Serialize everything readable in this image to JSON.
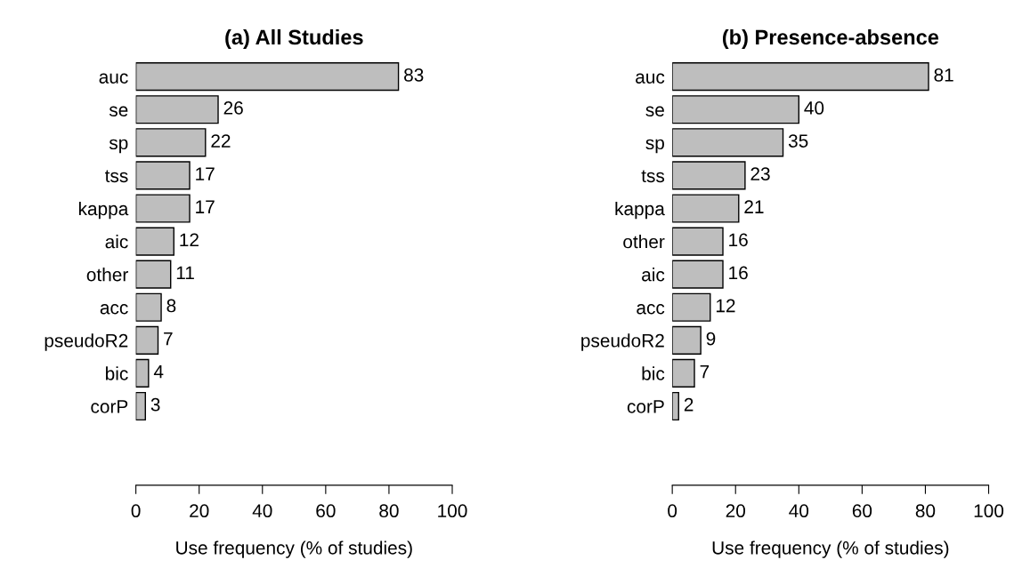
{
  "chart_data": [
    {
      "type": "bar",
      "orientation": "horizontal",
      "title": "(a) All Studies",
      "xlabel": "Use frequency (% of studies)",
      "categories": [
        "auc",
        "se",
        "sp",
        "tss",
        "kappa",
        "aic",
        "other",
        "acc",
        "pseudoR2",
        "bic",
        "corP"
      ],
      "values": [
        83,
        26,
        22,
        17,
        17,
        12,
        11,
        8,
        7,
        4,
        3
      ],
      "color": "#bebebe",
      "xlim": [
        0,
        100
      ],
      "xticks": [
        0,
        20,
        40,
        60,
        80,
        100
      ],
      "data_labels": true,
      "grid": false,
      "legend": false
    },
    {
      "type": "bar",
      "orientation": "horizontal",
      "title": "(b) Presence-absence",
      "xlabel": "Use frequency (% of studies)",
      "categories": [
        "auc",
        "se",
        "sp",
        "tss",
        "kappa",
        "other",
        "aic",
        "acc",
        "pseudoR2",
        "bic",
        "corP"
      ],
      "values": [
        81,
        40,
        35,
        23,
        21,
        16,
        16,
        12,
        9,
        7,
        2
      ],
      "color": "#bebebe",
      "xlim": [
        0,
        100
      ],
      "xticks": [
        0,
        20,
        40,
        60,
        80,
        100
      ],
      "data_labels": true,
      "grid": false,
      "legend": false
    }
  ]
}
